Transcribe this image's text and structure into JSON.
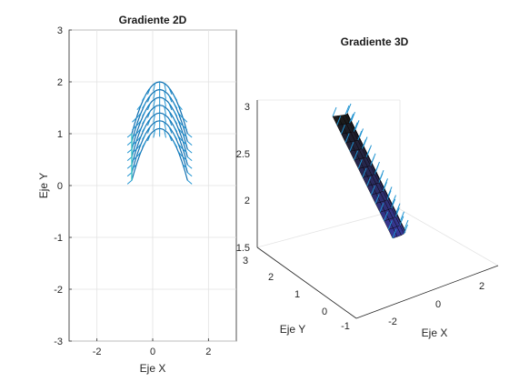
{
  "chart_data": [
    {
      "type": "quiver",
      "title": "Gradiente 2D",
      "xlabel": "Eje X",
      "ylabel": "Eje Y",
      "xlim": [
        -3,
        3
      ],
      "ylim": [
        -3,
        3
      ],
      "xticks": [
        "-2",
        "0",
        "2"
      ],
      "yticks": [
        "3",
        "2",
        "1",
        "0",
        "-1",
        "-2",
        "-3"
      ],
      "grid": true,
      "arcs": {
        "count": 7,
        "center_x": 0.25,
        "apex_y": [
          2.0,
          1.85,
          1.7,
          1.55,
          1.4,
          1.25,
          1.1
        ],
        "half_width": 1.0,
        "drop": 1.0
      },
      "colors": {
        "arrow": "#1f93d1",
        "arrow_dark": "#0f6fb0",
        "edge": "#3fc6c6"
      }
    },
    {
      "type": "surface-3d",
      "title": "Gradiente 3D",
      "xlabel": "Eje X",
      "ylabel": "Eje Y",
      "xticks": [
        "-2",
        "0",
        "2"
      ],
      "yticks": [
        "-1",
        "0",
        "1",
        "2",
        "3"
      ],
      "zticks": [
        "1.5",
        "2",
        "2.5",
        "3"
      ],
      "zlim": [
        1.5,
        3
      ],
      "grid": true,
      "colors": {
        "surface_top": "#1b1b1b",
        "surface_bottom": "#3a3aa0",
        "arrow": "#1f93d1"
      }
    }
  ]
}
